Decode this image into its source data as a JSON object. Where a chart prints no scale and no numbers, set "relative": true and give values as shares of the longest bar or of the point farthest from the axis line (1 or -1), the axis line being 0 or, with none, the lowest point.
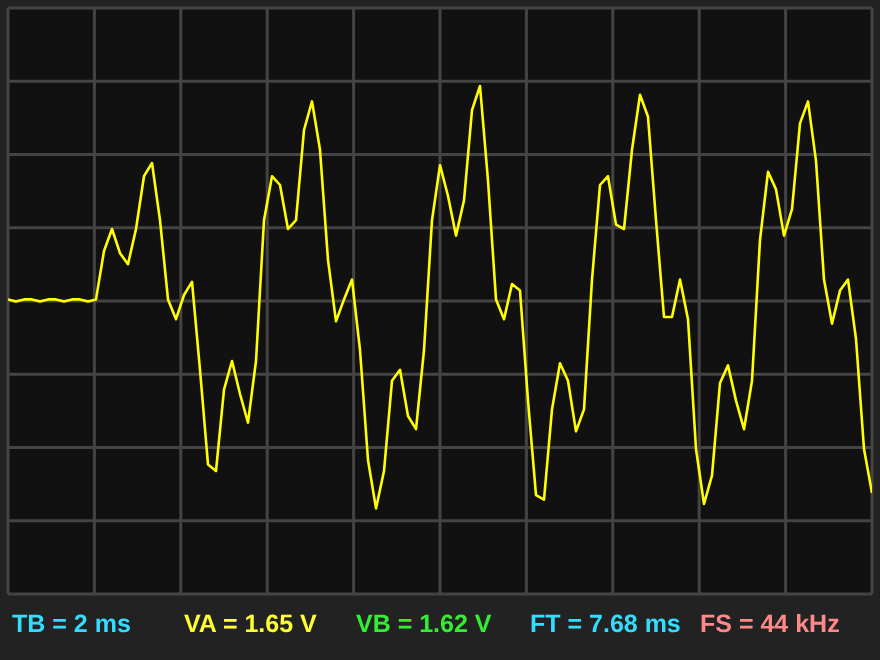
{
  "chart_data": {
    "type": "line",
    "relative": true,
    "grid": true,
    "color": "#ffff00",
    "categories": [
      null,
      null,
      null,
      null,
      null,
      null,
      null,
      null,
      null,
      null,
      null,
      null,
      null,
      null,
      null,
      null,
      null,
      null,
      null,
      null,
      null,
      null,
      null,
      null,
      null,
      null,
      null,
      null,
      null,
      null,
      null,
      null,
      null,
      null,
      null,
      null,
      null,
      null,
      null,
      null,
      null,
      null,
      null,
      null,
      null,
      null,
      null,
      null,
      null,
      null,
      null,
      null,
      null,
      null,
      null,
      null,
      null,
      null,
      null,
      null,
      null,
      null,
      null,
      null,
      null,
      null,
      null,
      null,
      null,
      null,
      null,
      null,
      null,
      null,
      null,
      null,
      null,
      null,
      null,
      null,
      null,
      null,
      null,
      null,
      null,
      null,
      null,
      null,
      null,
      null,
      null,
      null,
      null,
      null,
      null,
      null,
      null,
      null,
      null,
      null,
      null,
      null,
      null,
      null,
      null,
      null,
      null,
      null,
      null
    ],
    "values": [
      0.03,
      0.02,
      0.03,
      0.03,
      0.02,
      0.03,
      0.03,
      0.02,
      0.03,
      0.03,
      0.02,
      0.03,
      0.25,
      0.35,
      0.24,
      0.19,
      0.35,
      0.59,
      0.65,
      0.39,
      0.03,
      -0.06,
      0.05,
      0.11,
      -0.29,
      -0.72,
      -0.75,
      -0.38,
      -0.25,
      -0.4,
      -0.53,
      -0.25,
      0.39,
      0.59,
      0.55,
      0.35,
      0.39,
      0.8,
      0.93,
      0.71,
      0.21,
      -0.07,
      0.03,
      0.12,
      -0.2,
      -0.7,
      -0.92,
      -0.75,
      -0.34,
      -0.29,
      -0.5,
      -0.56,
      -0.2,
      0.39,
      0.64,
      0.5,
      0.32,
      0.48,
      0.89,
      1,
      0.57,
      0.03,
      -0.06,
      0.1,
      0.07,
      -0.43,
      -0.86,
      -0.88,
      -0.47,
      -0.26,
      -0.34,
      -0.57,
      -0.47,
      0.12,
      0.55,
      0.59,
      0.37,
      0.35,
      0.71,
      0.96,
      0.86,
      0.39,
      -0.05,
      -0.05,
      0.12,
      -0.06,
      -0.65,
      -0.9,
      -0.77,
      -0.35,
      -0.27,
      -0.43,
      -0.56,
      -0.34,
      0.3,
      0.61,
      0.53,
      0.32,
      0.44,
      0.83,
      0.93,
      0.66,
      0.12,
      -0.08,
      0.07,
      0.12,
      -0.15,
      -0.65,
      -0.85
    ],
    "annotations": [
      "TB = 2 ms",
      "VA = 1.65 V",
      "VB = 1.62 V",
      "FT = 7.68 ms",
      "FS = 44 kHz"
    ]
  }
}
